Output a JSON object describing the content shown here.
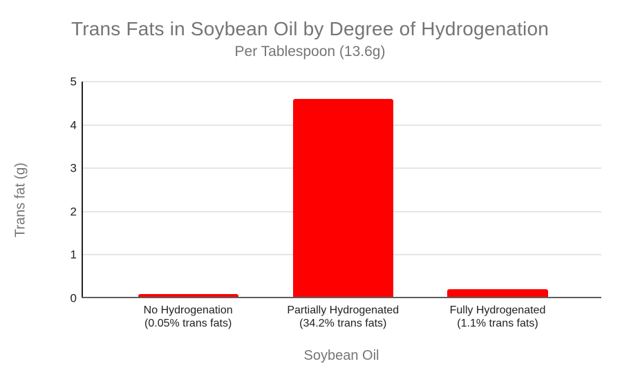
{
  "chart_data": {
    "type": "bar",
    "title": "Trans Fats in Soybean Oil by Degree of Hydrogenation",
    "subtitle": "Per Tablespoon (13.6g)",
    "xlabel": "Soybean Oil",
    "ylabel": "Trans fat (g)",
    "categories": [
      "No Hydrogenation",
      "Partially Hydrogenated",
      "Fully Hydrogenated"
    ],
    "category_sublabels": [
      "(0.05% trans fats)",
      "(34.2% trans fats)",
      "(1.1% trans fats)"
    ],
    "values": [
      0.1,
      4.6,
      0.2
    ],
    "ylim": [
      0,
      5
    ],
    "yticks": [
      0,
      1,
      2,
      3,
      4,
      5
    ],
    "grid": true,
    "legend": "none",
    "bar_color": "#ff0000"
  },
  "colors": {
    "background": "#ffffff",
    "title_text": "#757575",
    "subtitle_text": "#757575",
    "axis_title_text": "#757575",
    "tick_text": "#212121",
    "gridline": "#e6e6e6",
    "y_axis_line": "#212121",
    "x_axis_line": "#5f5f5f",
    "bar": "#ff0000"
  }
}
